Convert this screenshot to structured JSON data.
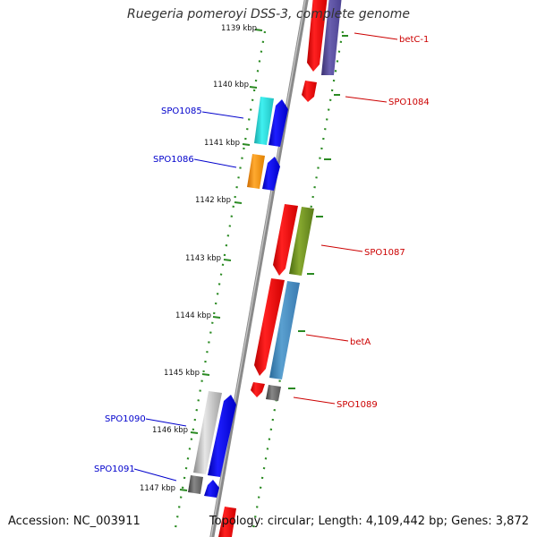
{
  "title": "Ruegeria pomeroyi DSS-3, complete genome",
  "footer": {
    "accession": "Accession: NC_003911",
    "topology": "Topology: circular; Length: 4,109,442 bp; Genes: 3,872"
  },
  "colors": {
    "backbone": "#909090",
    "tick": "#2a8a22",
    "forward_label": "#0000cc",
    "reverse_label": "#cc0000"
  },
  "ticks": [
    {
      "label": "1139 kbp"
    },
    {
      "label": "1140 kbp"
    },
    {
      "label": "1141 kbp"
    },
    {
      "label": "1142 kbp"
    },
    {
      "label": "1143 kbp"
    },
    {
      "label": "1144 kbp"
    },
    {
      "label": "1145 kbp"
    },
    {
      "label": "1146 kbp"
    },
    {
      "label": "1147 kbp"
    }
  ],
  "gene_labels": [
    {
      "name": "betC-1",
      "strand": "reverse"
    },
    {
      "name": "SPO1084",
      "strand": "reverse"
    },
    {
      "name": "SPO1085",
      "strand": "forward"
    },
    {
      "name": "SPO1086",
      "strand": "forward"
    },
    {
      "name": "SPO1087",
      "strand": "reverse"
    },
    {
      "name": "betA",
      "strand": "reverse"
    },
    {
      "name": "SPO1089",
      "strand": "reverse"
    },
    {
      "name": "SPO1090",
      "strand": "forward"
    },
    {
      "name": "SPO1091",
      "strand": "forward"
    }
  ]
}
